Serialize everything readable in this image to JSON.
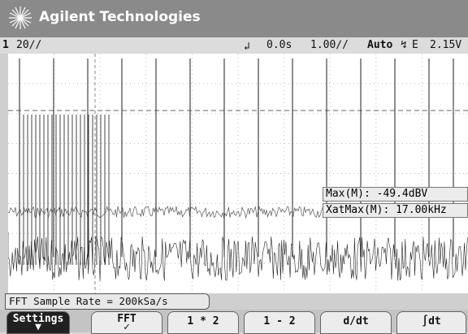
{
  "header": {
    "brand": "Agilent Technologies"
  },
  "status": {
    "channel": "1",
    "vscale": "20̸/",
    "vscale_display": "20∕/",
    "time_offset": "0.0s",
    "timebase": "1.00∕/",
    "trigger_mode": "Auto",
    "trigger_source": "E",
    "trigger_level": "2.15V"
  },
  "measurements": {
    "max_label": "Max(M):",
    "max_value": "-49.4dBV",
    "xatmax_label": "XatMax(M):",
    "xatmax_value": "17.00kHz"
  },
  "message": "FFT Sample Rate = 200kSa/s",
  "softkeys": [
    {
      "label": "Settings",
      "mark": "▼"
    },
    {
      "label": "FFT",
      "mark": "✓"
    },
    {
      "label": "1 * 2"
    },
    {
      "label": "1 - 2"
    },
    {
      "label": "d/dt"
    },
    {
      "label": "∫dt"
    }
  ],
  "colors": {
    "titlebar": "#8a8a8a",
    "screen": "#ffffff",
    "trace": "#1a1a1a"
  }
}
